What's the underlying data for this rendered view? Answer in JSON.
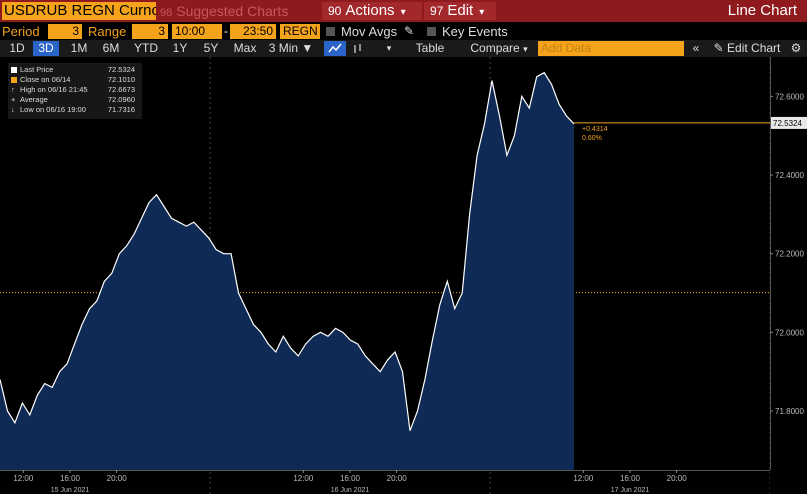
{
  "header": {
    "ticker": "USDRUB REGN Curncy",
    "suggested": "Suggested Charts",
    "actions_num": "90",
    "actions": "Actions",
    "edit_num": "97",
    "edit": "Edit",
    "title": "Line Chart"
  },
  "controls": {
    "period_label": "Period",
    "period_value": "3",
    "range_label": "Range",
    "range_value": "3",
    "time_from": "10:00",
    "time_to": "23:50",
    "dash": "-",
    "source": "REGN",
    "mov_avgs": "Mov Avgs",
    "key_events": "Key Events"
  },
  "toolbar": {
    "buttons": [
      "1D",
      "3D",
      "1M",
      "6M",
      "YTD",
      "1Y",
      "5Y",
      "Max"
    ],
    "active": "3D",
    "interval": "3 Min",
    "table": "Table",
    "compare": "Compare",
    "add_data_placeholder": "Add Data",
    "edit_chart": "Edit Chart"
  },
  "legend": {
    "items": [
      {
        "label": "Last Price",
        "value": "72.5324",
        "color": "#ffffff"
      },
      {
        "label": "Close on 06/14",
        "value": "72.1010",
        "color": "#f5a31b"
      },
      {
        "label": "High on 06/16 21:45",
        "value": "72.6673",
        "color": "#aaaaaa"
      },
      {
        "label": "Average",
        "value": "72.0960",
        "color": "#aaaaaa"
      },
      {
        "label": "Low on 06/16 19:00",
        "value": "71.7316",
        "color": "#aaaaaa"
      }
    ]
  },
  "chart_data": {
    "type": "area",
    "series_color": "#ffffff",
    "fill_color": "#0f2a55",
    "x": [
      0,
      1,
      2,
      3,
      4,
      5,
      6,
      7,
      8,
      9,
      10,
      11,
      12,
      13,
      14,
      15,
      16,
      17,
      18,
      19,
      20,
      21,
      22,
      23,
      24,
      25,
      26,
      27,
      28,
      29,
      30,
      31,
      32,
      33,
      34,
      35,
      36,
      37,
      38,
      39,
      40,
      41,
      42,
      43,
      44,
      45,
      46,
      47,
      48,
      49,
      50,
      51,
      52,
      53,
      54,
      55,
      56,
      57,
      58,
      59,
      60,
      61,
      62,
      63,
      64,
      65,
      66,
      67,
      68,
      69,
      70,
      71,
      72,
      73,
      74,
      75,
      76,
      77
    ],
    "y": [
      71.88,
      71.8,
      71.77,
      71.82,
      71.79,
      71.84,
      71.87,
      71.86,
      71.9,
      71.92,
      71.97,
      72.02,
      72.06,
      72.08,
      72.13,
      72.15,
      72.2,
      72.22,
      72.25,
      72.29,
      72.33,
      72.35,
      72.32,
      72.29,
      72.28,
      72.27,
      72.28,
      72.26,
      72.24,
      72.21,
      72.2,
      72.2,
      72.1,
      72.06,
      72.02,
      72.0,
      71.97,
      71.95,
      71.99,
      71.96,
      71.94,
      71.97,
      71.99,
      72.0,
      71.99,
      72.01,
      72.0,
      71.98,
      71.97,
      71.94,
      71.92,
      71.9,
      71.93,
      71.95,
      71.9,
      71.75,
      71.8,
      71.88,
      71.98,
      72.07,
      72.13,
      72.06,
      72.1,
      72.3,
      72.45,
      72.53,
      72.64,
      72.55,
      72.45,
      72.5,
      72.6,
      72.57,
      72.65,
      72.66,
      72.63,
      72.58,
      72.55,
      72.53
    ],
    "ylim": [
      71.65,
      72.7
    ],
    "yticks": [
      "72.6000",
      "72.4000",
      "72.2000",
      "72.0000",
      "71.8000"
    ],
    "ytick_values": [
      72.6,
      72.4,
      72.2,
      72.0,
      71.8
    ],
    "xticks": [
      "12:00",
      "16:00",
      "20:00",
      "12:00",
      "16:00",
      "20:00",
      "12:00",
      "16:00",
      "20:00"
    ],
    "xtick_positions": [
      2,
      6,
      10,
      26,
      30,
      34,
      50,
      54,
      58
    ],
    "day_labels": [
      "15 Jun 2021",
      "16 Jun 2021",
      "17 Jun 2021"
    ],
    "day_label_positions": [
      6,
      30,
      54
    ],
    "day_boundaries": [
      18,
      42,
      66
    ],
    "x_max": 66,
    "last_price_label": "72.5324",
    "change_label": "+0.4314",
    "change_pct_label": "0.60%",
    "close_line_value": 72.101,
    "last_price_value": 72.5324
  },
  "colors": {
    "header_bg": "#8e1a1e",
    "amber": "#f5a31b",
    "active_blue": "#2a64c8"
  }
}
